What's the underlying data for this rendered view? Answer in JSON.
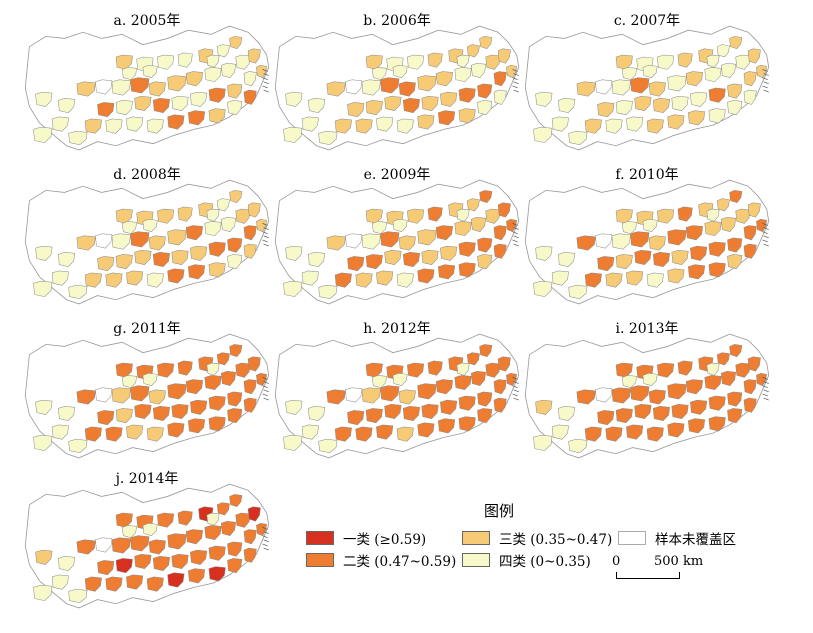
{
  "panels": [
    {
      "label": "a. 2005年",
      "year": 2005
    },
    {
      "label": "b. 2006年",
      "year": 2006
    },
    {
      "label": "c. 2007年",
      "year": 2007
    },
    {
      "label": "d. 2008年",
      "year": 2008
    },
    {
      "label": "e. 2009年",
      "year": 2009
    },
    {
      "label": "f. 2010年",
      "year": 2010
    },
    {
      "label": "g. 2011年",
      "year": 2011
    },
    {
      "label": "h. 2012年",
      "year": 2012
    },
    {
      "label": "i. 2013年",
      "year": 2013
    },
    {
      "label": "j. 2014年",
      "year": 2014
    }
  ],
  "legend": {
    "title": "图例",
    "items": [
      {
        "label": "一类 (≥0.59)",
        "color": "#d7301f"
      },
      {
        "label": "二类 (0.47~0.59)",
        "color": "#ee7d32"
      },
      {
        "label": "三类 (0.35~0.47)",
        "color": "#f7cb76"
      },
      {
        "label": "四类 (0~0.35)",
        "color": "#f8f9c8"
      },
      {
        "label": "样本未覆盖区",
        "color": "#ffffff"
      }
    ],
    "scale_zero": "0",
    "scale_value": "500 km"
  }
}
